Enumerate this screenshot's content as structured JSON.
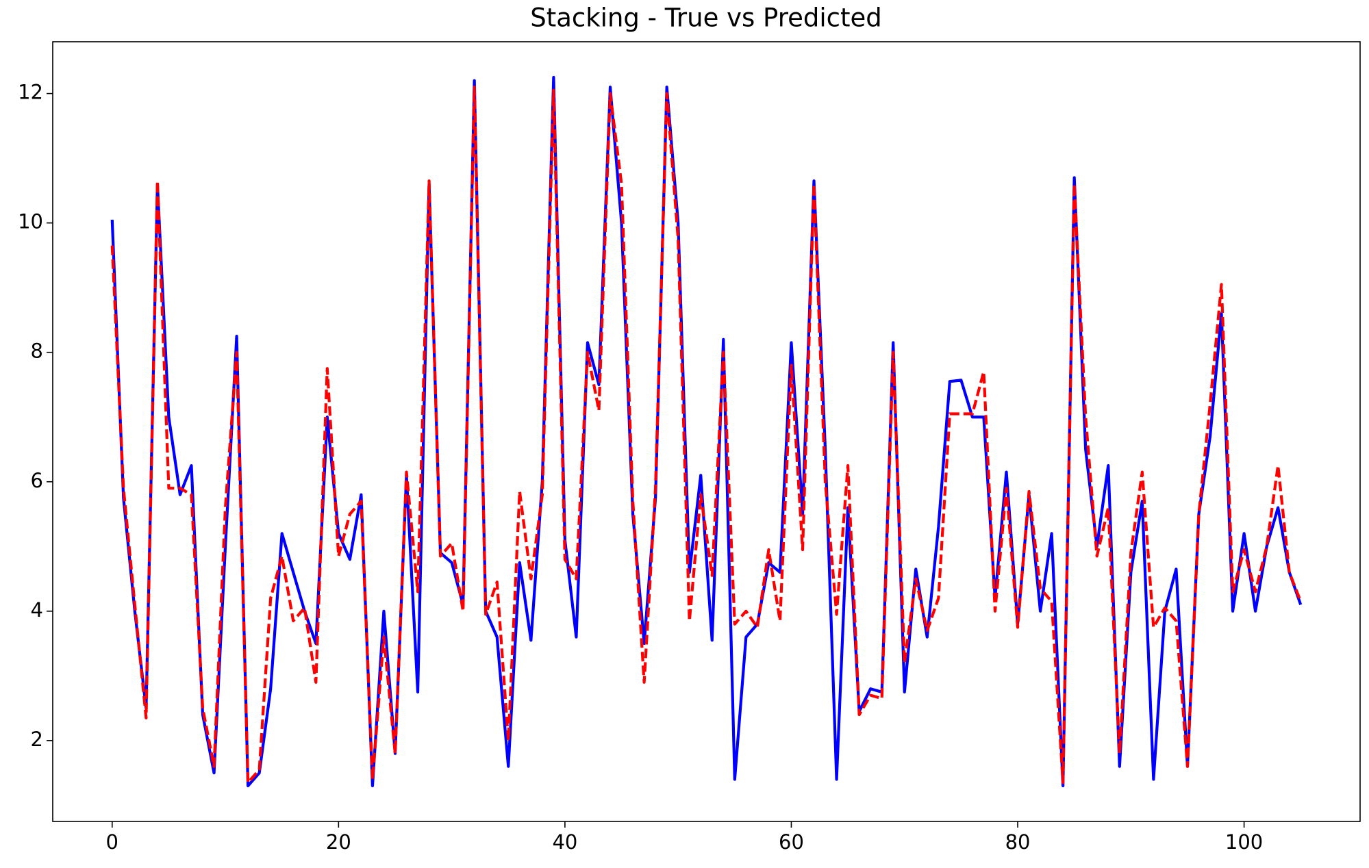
{
  "chart_data": {
    "type": "line",
    "title": "Stacking - True vs Predicted",
    "x": [
      0,
      1,
      2,
      3,
      4,
      5,
      6,
      7,
      8,
      9,
      10,
      11,
      12,
      13,
      14,
      15,
      16,
      17,
      18,
      19,
      20,
      21,
      22,
      23,
      24,
      25,
      26,
      27,
      28,
      29,
      30,
      31,
      32,
      33,
      34,
      35,
      36,
      37,
      38,
      39,
      40,
      41,
      42,
      43,
      44,
      45,
      46,
      47,
      48,
      49,
      50,
      51,
      52,
      53,
      54,
      55,
      56,
      57,
      58,
      59,
      60,
      61,
      62,
      63,
      64,
      65,
      66,
      67,
      68,
      69,
      70,
      71,
      72,
      73,
      74,
      75,
      76,
      77,
      78,
      79,
      80,
      81,
      82,
      83,
      84,
      85,
      86,
      87,
      88,
      89,
      90,
      91,
      92,
      93,
      94,
      95,
      96,
      97,
      98,
      99,
      100,
      101,
      102,
      103,
      104,
      105
    ],
    "series": [
      {
        "color": "#0000ff",
        "dashed": false,
        "values": [
          10.05,
          5.75,
          4.0,
          2.5,
          10.6,
          7.0,
          5.8,
          6.25,
          2.4,
          1.5,
          5.0,
          8.25,
          1.3,
          1.5,
          2.8,
          5.2,
          4.6,
          4.0,
          3.5,
          7.0,
          5.2,
          4.8,
          5.8,
          1.3,
          4.0,
          1.8,
          6.1,
          2.75,
          10.6,
          4.9,
          4.75,
          4.1,
          12.2,
          4.0,
          3.6,
          1.6,
          4.75,
          3.55,
          6.0,
          12.25,
          5.1,
          3.6,
          8.15,
          7.5,
          12.1,
          10.0,
          5.5,
          3.5,
          5.75,
          12.1,
          10.0,
          4.6,
          6.1,
          3.55,
          8.2,
          1.4,
          3.6,
          3.8,
          4.75,
          4.6,
          8.15,
          5.5,
          10.65,
          6.5,
          1.4,
          5.6,
          2.45,
          2.8,
          2.75,
          8.15,
          2.75,
          4.65,
          3.6,
          5.3,
          7.55,
          7.57,
          7.0,
          7.0,
          4.2,
          6.15,
          3.8,
          5.8,
          4.0,
          5.2,
          1.3,
          10.7,
          6.5,
          5.0,
          6.25,
          1.6,
          4.6,
          5.7,
          1.4,
          4.0,
          4.65,
          1.6,
          5.5,
          6.7,
          8.6,
          4.0,
          5.2,
          4.0,
          5.0,
          5.6,
          4.6,
          4.1
        ]
      },
      {
        "color": "#ff0000",
        "dashed": true,
        "values": [
          9.65,
          5.9,
          4.1,
          2.35,
          10.65,
          5.9,
          5.9,
          5.8,
          2.5,
          1.6,
          5.6,
          8.0,
          1.35,
          1.55,
          4.2,
          4.85,
          3.85,
          4.05,
          2.9,
          7.75,
          4.85,
          5.5,
          5.7,
          1.4,
          3.6,
          1.8,
          6.15,
          4.3,
          10.65,
          4.85,
          5.05,
          4.0,
          12.1,
          3.95,
          4.45,
          2.0,
          5.85,
          4.5,
          5.8,
          12.05,
          4.8,
          4.5,
          8.0,
          7.1,
          12.0,
          10.6,
          5.7,
          2.9,
          5.9,
          12.0,
          9.75,
          3.85,
          5.8,
          4.55,
          8.0,
          3.8,
          4.0,
          3.75,
          4.95,
          3.85,
          7.8,
          4.95,
          10.6,
          6.0,
          3.95,
          6.25,
          2.4,
          2.7,
          2.65,
          8.0,
          3.2,
          4.5,
          3.7,
          4.2,
          7.05,
          7.05,
          7.05,
          7.7,
          4.0,
          5.9,
          3.75,
          5.85,
          4.35,
          4.15,
          1.35,
          10.6,
          7.0,
          4.85,
          5.6,
          1.8,
          4.9,
          6.15,
          3.75,
          4.05,
          3.85,
          1.6,
          5.5,
          7.2,
          9.05,
          4.3,
          4.95,
          4.3,
          5.0,
          6.25,
          4.6,
          4.15
        ]
      }
    ],
    "xlim": [
      -5.25,
      110.25
    ],
    "ylim": [
      0.75,
      12.8
    ],
    "xticks": [
      0,
      20,
      40,
      60,
      80,
      100
    ],
    "yticks": [
      2,
      4,
      6,
      8,
      10,
      12
    ]
  }
}
